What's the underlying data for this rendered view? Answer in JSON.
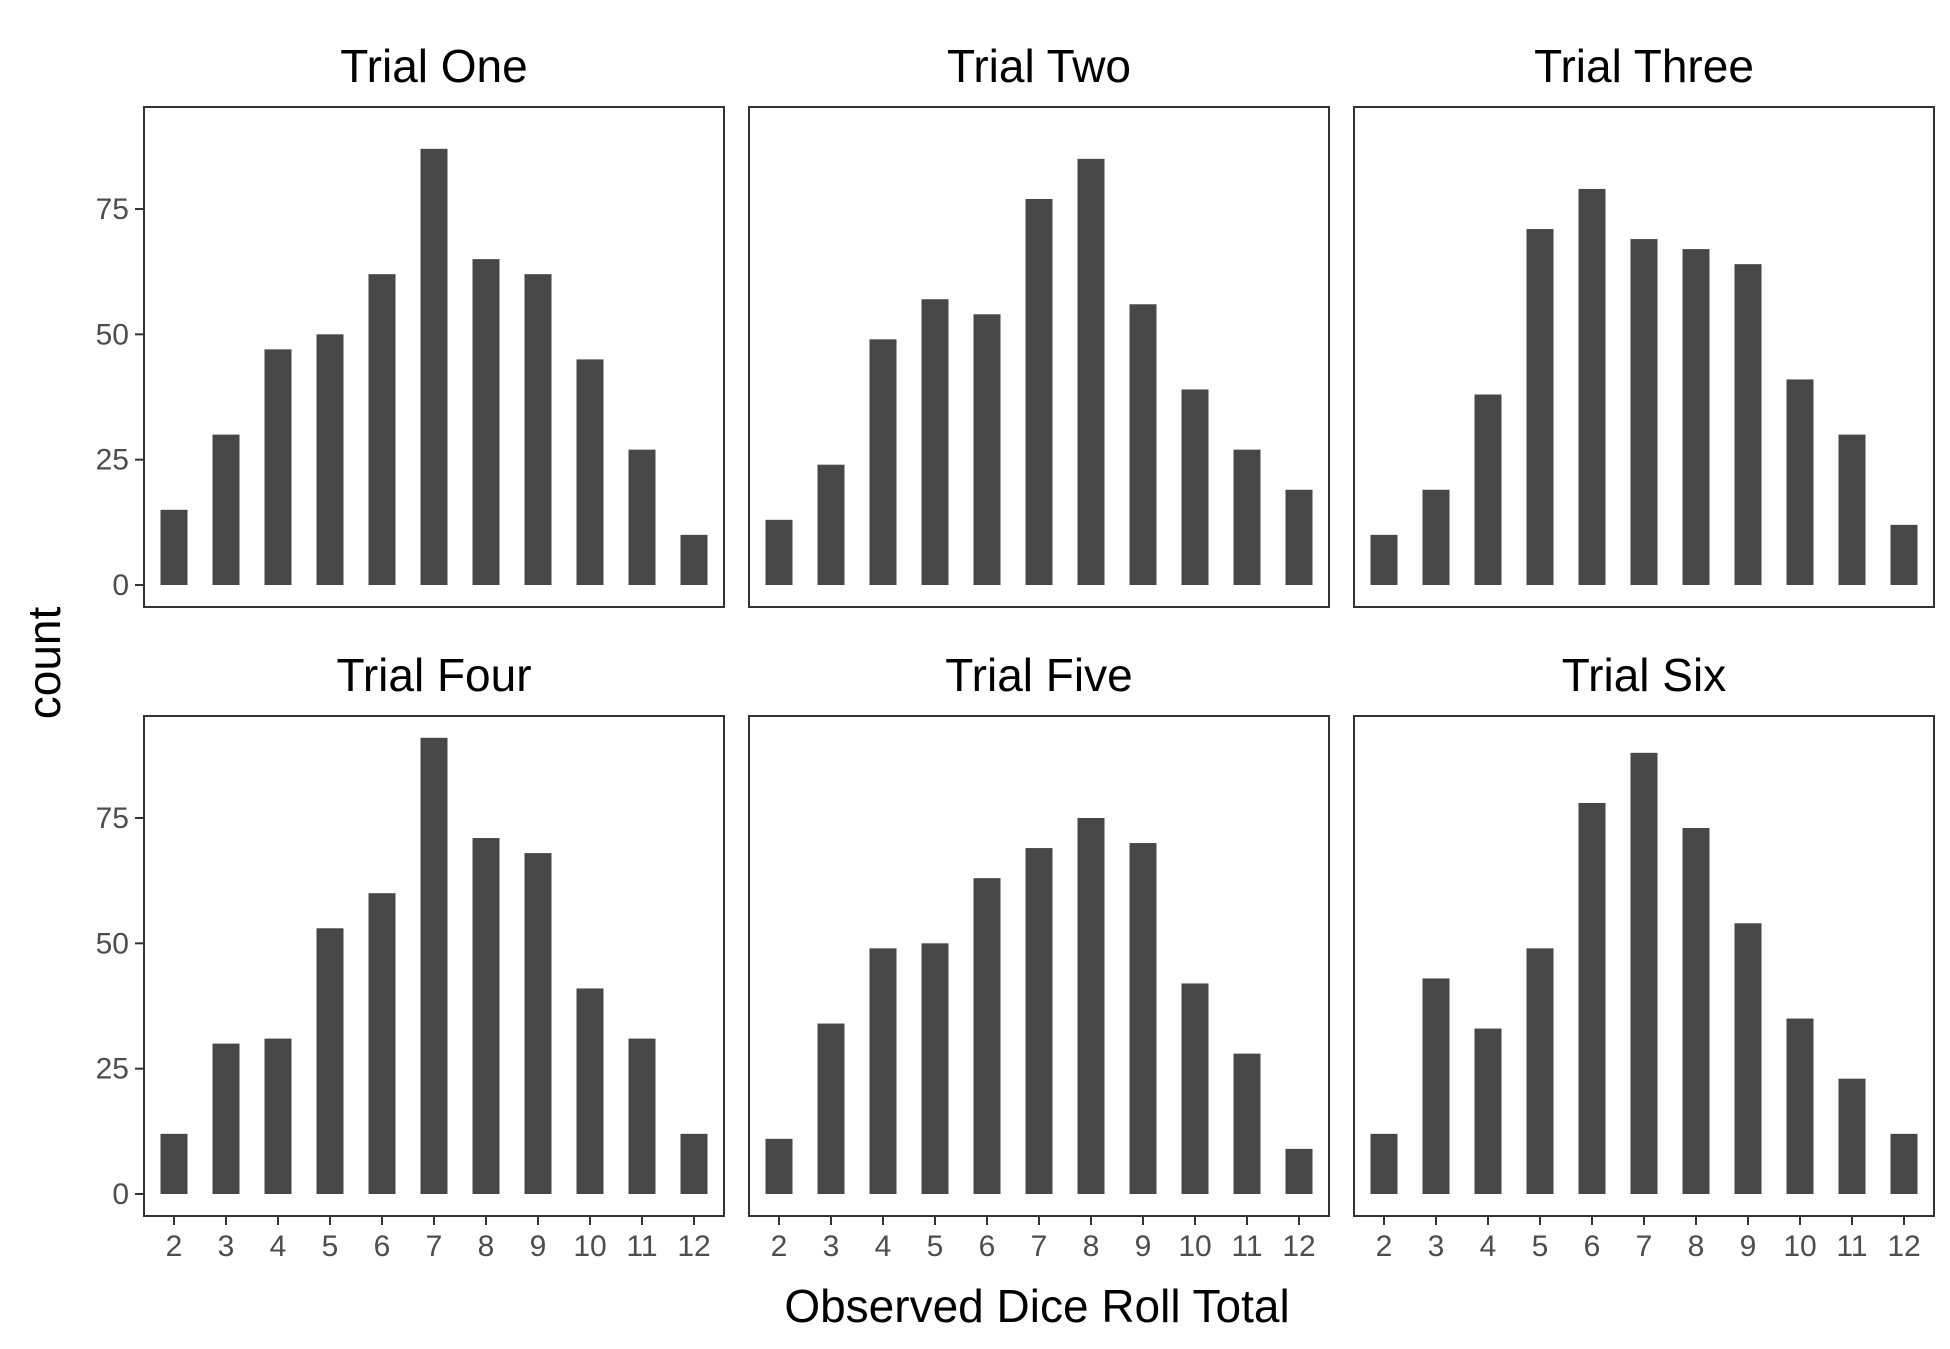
{
  "chart_data": {
    "type": "bar",
    "xlabel": "Observed Dice Roll Total",
    "ylabel": "count",
    "categories": [
      "2",
      "3",
      "4",
      "5",
      "6",
      "7",
      "8",
      "9",
      "10",
      "11",
      "12"
    ],
    "y_ticks": [
      0,
      25,
      50,
      75
    ],
    "ylim": [
      0,
      96
    ],
    "grid": false,
    "bar_color": "#474747",
    "panels": [
      {
        "title": "Trial One",
        "values": [
          15,
          30,
          47,
          50,
          62,
          87,
          65,
          62,
          45,
          27,
          10
        ]
      },
      {
        "title": "Trial Two",
        "values": [
          13,
          24,
          49,
          57,
          54,
          77,
          85,
          56,
          39,
          27,
          19
        ]
      },
      {
        "title": "Trial Three",
        "values": [
          10,
          19,
          38,
          71,
          79,
          69,
          67,
          64,
          41,
          30,
          12
        ]
      },
      {
        "title": "Trial Four",
        "values": [
          12,
          30,
          31,
          53,
          60,
          91,
          71,
          68,
          41,
          31,
          12
        ]
      },
      {
        "title": "Trial Five",
        "values": [
          11,
          34,
          49,
          50,
          63,
          69,
          75,
          70,
          42,
          28,
          9
        ]
      },
      {
        "title": "Trial Six",
        "values": [
          12,
          43,
          33,
          49,
          78,
          88,
          73,
          54,
          35,
          23,
          12
        ]
      }
    ]
  }
}
